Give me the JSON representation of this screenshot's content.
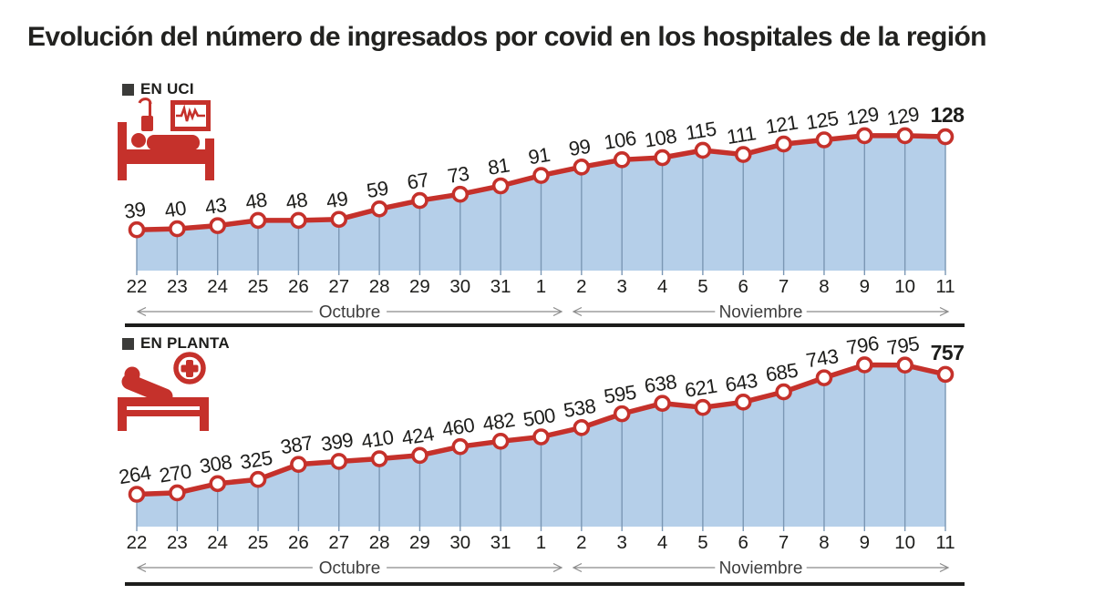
{
  "title": "Evolución del número de ingresados por covid en los hospitales de la región",
  "colors": {
    "line_red": "#c5312b",
    "area_blue": "#b5cfe9",
    "drop_line": "#7b97b4",
    "text_dark": "#1d1d1b",
    "axis_gray": "#8a8a8a",
    "legend_square": "#3b3b39"
  },
  "chart_data": [
    {
      "type": "area",
      "title": "EN UCI",
      "icon": "icu-bed-monitor-icon",
      "categories": [
        "22",
        "23",
        "24",
        "25",
        "26",
        "27",
        "28",
        "29",
        "30",
        "31",
        "1",
        "2",
        "3",
        "4",
        "5",
        "6",
        "7",
        "8",
        "9",
        "10",
        "11"
      ],
      "values": [
        39,
        40,
        43,
        48,
        48,
        49,
        59,
        67,
        73,
        81,
        91,
        99,
        106,
        108,
        115,
        111,
        121,
        125,
        129,
        129,
        128
      ],
      "xlabel_groups": [
        {
          "label": "Octubre",
          "from": "22",
          "to": "31"
        },
        {
          "label": "Noviembre",
          "from": "1",
          "to": "11"
        }
      ],
      "ylim": [
        0,
        140
      ],
      "last_label_bold": true,
      "legend_position": "top-left",
      "grid": false
    },
    {
      "type": "area",
      "title": "EN PLANTA",
      "icon": "ward-bed-cross-icon",
      "categories": [
        "22",
        "23",
        "24",
        "25",
        "26",
        "27",
        "28",
        "29",
        "30",
        "31",
        "1",
        "2",
        "3",
        "4",
        "5",
        "6",
        "7",
        "8",
        "9",
        "10",
        "11"
      ],
      "values": [
        264,
        270,
        308,
        325,
        387,
        399,
        410,
        424,
        460,
        482,
        500,
        538,
        595,
        638,
        621,
        643,
        685,
        743,
        796,
        795,
        757
      ],
      "xlabel_groups": [
        {
          "label": "Octubre",
          "from": "22",
          "to": "31"
        },
        {
          "label": "Noviembre",
          "from": "1",
          "to": "11"
        }
      ],
      "ylim": [
        130,
        830
      ],
      "last_label_bold": true,
      "legend_position": "top-left",
      "grid": false
    }
  ]
}
